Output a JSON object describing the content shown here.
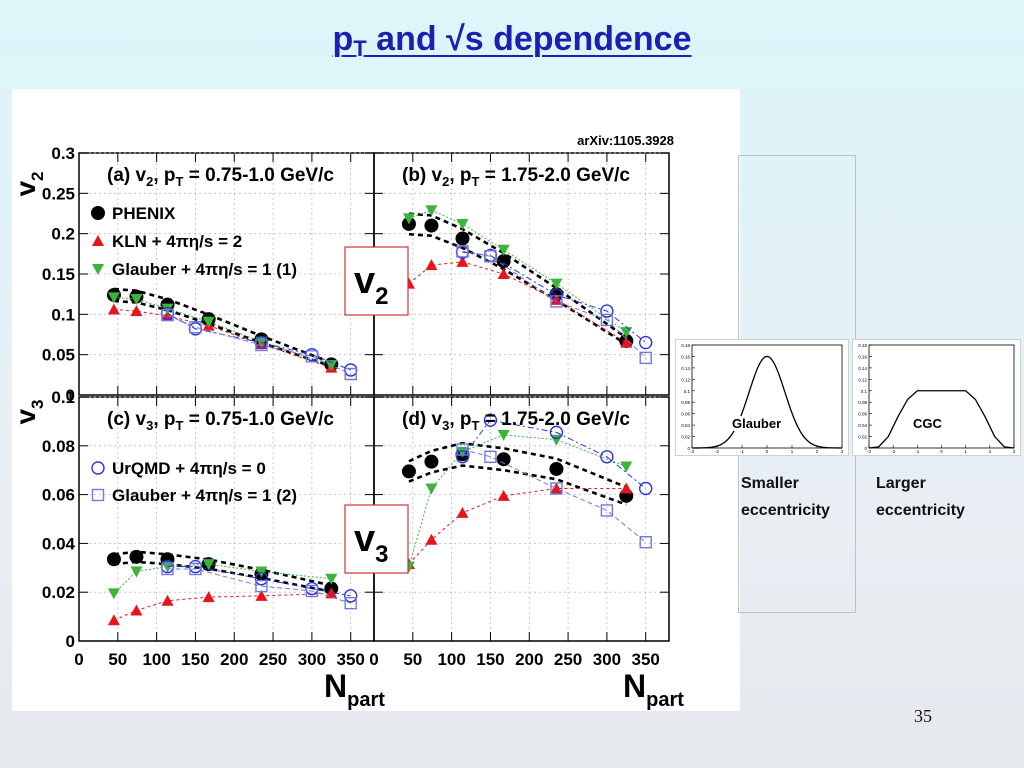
{
  "slide": {
    "title": {
      "p": "p",
      "sub": "T",
      "rest": " and √s dependence"
    },
    "page_number": "35"
  },
  "figure": {
    "arxiv": "arXiv:1105.3928",
    "callouts": {
      "v2": {
        "main": "v",
        "sub": "2"
      },
      "v3": {
        "main": "v",
        "sub": "3"
      }
    },
    "x_axis": {
      "label_main": "N",
      "label_sub": "part",
      "ticks": [
        "0",
        "50",
        "100",
        "150",
        "200",
        "250",
        "300",
        "350"
      ]
    },
    "y_axis_labels": {
      "v2": {
        "main": "v",
        "sub": "2"
      },
      "v3": {
        "main": "v",
        "sub": "3"
      }
    },
    "v2_ticks": [
      "0",
      "0.05",
      "0.1",
      "0.15",
      "0.2",
      "0.25",
      "0.3"
    ],
    "v3_ticks": [
      "0",
      "0.02",
      "0.04",
      "0.06",
      "0.08",
      "0.1"
    ],
    "legend": {
      "phenix": "PHENIX",
      "kln": "KLN + 4πη/s = 2",
      "glauber1": "Glauber + 4πη/s = 1 (1)",
      "urqmd": "UrQMD + 4πη/s = 0",
      "glauber2": "Glauber + 4πη/s = 1 (2)"
    },
    "colors": {
      "phenix": "#000000",
      "kln": "#e8141b",
      "glauber1": "#3cb43c",
      "urqmd": "#2a35d8",
      "glauber2": "#7078e0"
    }
  },
  "chart_data": [
    {
      "type": "scatter",
      "panel_label": "(a) v2, pT = 0.75-1.0 GeV/c",
      "label": {
        "pre": "(a) v",
        "s1": "2",
        "mid": ", p",
        "s2": "T",
        "post": " = 0.75-1.0 GeV/c"
      },
      "xlim": [
        0,
        380
      ],
      "ylim": [
        0,
        0.3
      ],
      "ylabel": "v2",
      "xlabel": "Npart",
      "series": [
        {
          "name": "PHENIX",
          "x": [
            45,
            74,
            114,
            167,
            235,
            325
          ],
          "y": [
            0.124,
            0.122,
            0.112,
            0.094,
            0.069,
            0.038
          ]
        },
        {
          "name": "KLN + 4πη/s = 2",
          "x": [
            45,
            74,
            114,
            167,
            235,
            325
          ],
          "y": [
            0.106,
            0.104,
            0.098,
            0.086,
            0.063,
            0.034
          ]
        },
        {
          "name": "Glauber + 4πη/s = 1 (1)",
          "x": [
            45,
            74,
            114,
            167,
            235,
            325
          ],
          "y": [
            0.121,
            0.119,
            0.107,
            0.091,
            0.066,
            0.037
          ]
        },
        {
          "name": "UrQMD + 4πη/s = 0",
          "x": [
            114,
            150,
            235,
            300,
            350
          ],
          "y": [
            0.101,
            0.082,
            0.065,
            0.05,
            0.031
          ]
        },
        {
          "name": "Glauber + 4πη/s = 1 (2)",
          "x": [
            114,
            150,
            235,
            300,
            350
          ],
          "y": [
            0.099,
            0.084,
            0.062,
            0.048,
            0.026
          ]
        }
      ]
    },
    {
      "type": "scatter",
      "panel_label": "(b) v2, pT = 1.75-2.0 GeV/c",
      "label": {
        "pre": "(b) v",
        "s1": "2",
        "mid": ", p",
        "s2": "T",
        "post": " = 1.75-2.0 GeV/c"
      },
      "xlim": [
        0,
        380
      ],
      "ylim": [
        0,
        0.3
      ],
      "ylabel": "v2",
      "xlabel": "Npart",
      "series": [
        {
          "name": "PHENIX",
          "x": [
            45,
            74,
            114,
            167,
            235,
            325
          ],
          "y": [
            0.212,
            0.21,
            0.194,
            0.166,
            0.125,
            0.067
          ]
        },
        {
          "name": "KLN + 4πη/s = 2",
          "x": [
            45,
            74,
            114,
            167,
            235,
            325
          ],
          "y": [
            0.138,
            0.161,
            0.165,
            0.15,
            0.118,
            0.065
          ]
        },
        {
          "name": "Glauber + 4πη/s = 1 (1)",
          "x": [
            45,
            74,
            114,
            167,
            235,
            325
          ],
          "y": [
            0.219,
            0.229,
            0.212,
            0.18,
            0.138,
            0.078
          ]
        },
        {
          "name": "UrQMD + 4πη/s = 0",
          "x": [
            114,
            150,
            235,
            300,
            350
          ],
          "y": [
            0.177,
            0.173,
            0.124,
            0.104,
            0.065
          ]
        },
        {
          "name": "Glauber + 4πη/s = 1 (2)",
          "x": [
            114,
            150,
            235,
            300,
            350
          ],
          "y": [
            0.178,
            0.172,
            0.116,
            0.093,
            0.046
          ]
        }
      ]
    },
    {
      "type": "scatter",
      "panel_label": "(c) v3, pT = 0.75-1.0 GeV/c",
      "label": {
        "pre": "(c) v",
        "s1": "3",
        "mid": ", p",
        "s2": "T",
        "post": " = 0.75-1.0 GeV/c"
      },
      "xlim": [
        0,
        380
      ],
      "ylim": [
        0,
        0.1
      ],
      "ylabel": "v3",
      "xlabel": "Npart",
      "series": [
        {
          "name": "PHENIX",
          "x": [
            45,
            74,
            114,
            167,
            235,
            325
          ],
          "y": [
            0.0335,
            0.0345,
            0.0335,
            0.0315,
            0.0275,
            0.0215
          ]
        },
        {
          "name": "KLN + 4πη/s = 2",
          "x": [
            45,
            74,
            114,
            167,
            235,
            325
          ],
          "y": [
            0.0085,
            0.0125,
            0.0165,
            0.018,
            0.0185,
            0.0195
          ]
        },
        {
          "name": "Glauber + 4πη/s = 1 (1)",
          "x": [
            45,
            74,
            114,
            167,
            235,
            325
          ],
          "y": [
            0.0195,
            0.0285,
            0.0305,
            0.0315,
            0.0285,
            0.0255
          ]
        },
        {
          "name": "UrQMD + 4πη/s = 0",
          "x": [
            114,
            150,
            235,
            300,
            350
          ],
          "y": [
            0.0305,
            0.0305,
            0.0255,
            0.0215,
            0.0185
          ]
        },
        {
          "name": "Glauber + 4πη/s = 1 (2)",
          "x": [
            114,
            150,
            235,
            300,
            350
          ],
          "y": [
            0.0295,
            0.0295,
            0.0225,
            0.0205,
            0.0155
          ]
        }
      ]
    },
    {
      "type": "scatter",
      "panel_label": "(d) v3, pT = 1.75-2.0 GeV/c",
      "label": {
        "pre": "(d) v",
        "s1": "3",
        "mid": ", p",
        "s2": "T",
        "post": " = 1.75-2.0 GeV/c"
      },
      "xlim": [
        0,
        380
      ],
      "ylim": [
        0,
        0.1
      ],
      "ylabel": "v3",
      "xlabel": "Npart",
      "series": [
        {
          "name": "PHENIX",
          "x": [
            45,
            74,
            114,
            167,
            235,
            325
          ],
          "y": [
            0.0695,
            0.0735,
            0.0765,
            0.0745,
            0.0705,
            0.0595
          ]
        },
        {
          "name": "KLN + 4πη/s = 2",
          "x": [
            45,
            74,
            114,
            167,
            235,
            325
          ],
          "y": [
            0.0315,
            0.0415,
            0.0525,
            0.0595,
            0.0625,
            0.0625
          ]
        },
        {
          "name": "Glauber + 4πη/s = 1 (1)",
          "x": [
            45,
            74,
            114,
            167,
            235,
            325
          ],
          "y": [
            0.0305,
            0.0625,
            0.0775,
            0.0845,
            0.0825,
            0.0715
          ]
        },
        {
          "name": "UrQMD + 4πη/s = 0",
          "x": [
            114,
            150,
            235,
            300,
            350
          ],
          "y": [
            0.0755,
            0.0905,
            0.0855,
            0.0755,
            0.0625
          ]
        },
        {
          "name": "Glauber + 4πη/s = 1 (2)",
          "x": [
            114,
            150,
            235,
            300,
            350
          ],
          "y": [
            0.0785,
            0.0755,
            0.0625,
            0.0535,
            0.0405
          ]
        }
      ]
    },
    {
      "type": "area",
      "title": "Glauber",
      "xlim": [
        -3,
        3
      ],
      "ylim": [
        0,
        0.18
      ],
      "y_ticks": [
        "0",
        "0.02",
        "0.04",
        "0.06",
        "0.08",
        "0.1",
        "0.12",
        "0.14",
        "0.16",
        "0.18"
      ],
      "x_ticks": [
        "-3",
        "-2",
        "-1",
        "0",
        "1",
        "2",
        "3"
      ],
      "x": [
        -3,
        -2.5,
        -2,
        -1.5,
        -1,
        -0.5,
        0,
        0.5,
        1,
        1.5,
        2,
        2.5,
        3
      ],
      "y": [
        0,
        0.001,
        0.01,
        0.035,
        0.08,
        0.13,
        0.16,
        0.13,
        0.08,
        0.035,
        0.01,
        0.001,
        0
      ]
    },
    {
      "type": "area",
      "title": "CGC",
      "xlim": [
        -3,
        3
      ],
      "ylim": [
        0,
        0.18
      ],
      "y_ticks": [
        "0",
        "0.02",
        "0.04",
        "0.06",
        "0.08",
        "0.1",
        "0.12",
        "0.14",
        "0.16",
        "0.18"
      ],
      "x_ticks": [
        "-3",
        "-2",
        "-1",
        "0",
        "1",
        "2",
        "3"
      ],
      "x": [
        -3,
        -2.6,
        -2.2,
        -1.8,
        -1.4,
        -1,
        1,
        1.4,
        1.8,
        2.2,
        2.6,
        3
      ],
      "y": [
        0,
        0.002,
        0.02,
        0.055,
        0.085,
        0.1,
        0.1,
        0.085,
        0.055,
        0.02,
        0.002,
        0
      ]
    }
  ],
  "annotations": {
    "smaller": [
      "Smaller",
      "eccentricity"
    ],
    "larger": [
      "Larger",
      "eccentricity"
    ]
  }
}
